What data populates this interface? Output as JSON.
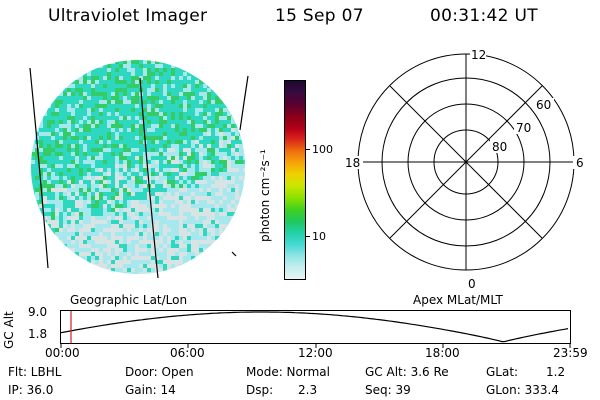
{
  "header": {
    "instrument": "Ultraviolet Imager",
    "date": "15 Sep 07",
    "time": "00:31:42 UT"
  },
  "colorbar": {
    "unit_label": "photon cm⁻²s⁻¹",
    "tick_labels": [
      "100",
      "10"
    ],
    "colors": [
      "#1a0a2e",
      "#3a0a40",
      "#5a0030",
      "#8a0018",
      "#b4001a",
      "#d8201a",
      "#ee6a10",
      "#f6a20a",
      "#f0d000",
      "#c8e600",
      "#8ce000",
      "#40d020",
      "#20c860",
      "#20d0a0",
      "#40d8d0",
      "#8ce4e4",
      "#c4eeee",
      "#e8f4f4"
    ]
  },
  "image_panel": {
    "colors": {
      "teal": "#2ed8c0",
      "green": "#33cc66",
      "cyan": "#a6e8ee",
      "gray": "#d8e4e4"
    }
  },
  "polar_plot": {
    "mlt_labels": {
      "top": "12",
      "left": "18",
      "right": "6",
      "bottom": "0"
    },
    "lat_labels": [
      "60",
      "70",
      "80"
    ]
  },
  "timeline": {
    "left_label": "Geographic Lat/Lon",
    "right_label": "Apex MLat/MLT",
    "y_axis_label": "GC Alt",
    "y_ticks": [
      "9.0",
      "1.8"
    ],
    "x_ticks": [
      "00:00",
      "06:00",
      "12:00",
      "18:00",
      "23:59"
    ],
    "marker_color": "#cc2222"
  },
  "info": {
    "flt": "Flt: LBHL",
    "ip": "IP: 36.0",
    "door": "Door: Open",
    "gain": "Gain: 14",
    "mode": "Mode: Normal",
    "dsp_label": "Dsp:",
    "dsp_value": "2.3",
    "gc_alt": "GC Alt: 3.6 Re",
    "seq": "Seq: 39",
    "glat_label": "GLat:",
    "glat_value": "1.2",
    "glon": "GLon: 333.4"
  }
}
